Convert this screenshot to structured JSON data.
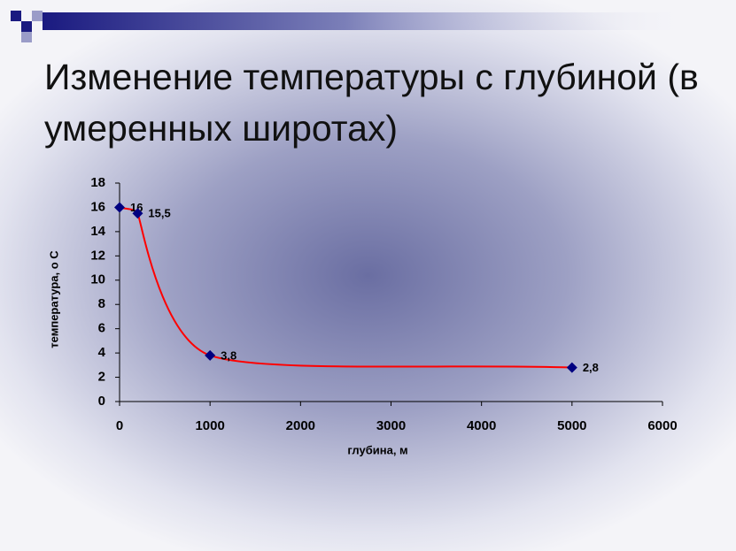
{
  "chart_data": {
    "type": "line",
    "title": "Изменение температуры с глубиной (в умеренных широтах)",
    "x_label": "глубина, м",
    "y_label": "температура, о С",
    "x": [
      0,
      200,
      1000,
      5000
    ],
    "series": [
      {
        "color": "#000080",
        "line_color": "#ff0000",
        "values": [
          16,
          15.5,
          3.8,
          2.8
        ],
        "value_labels": [
          "16",
          "15,5",
          "3,8",
          "2,8"
        ]
      }
    ],
    "xlim": [
      0,
      6000
    ],
    "xticks": [
      0,
      1000,
      2000,
      3000,
      4000,
      5000,
      6000
    ],
    "ylim": [
      0,
      18
    ],
    "yticks": [
      0,
      2,
      4,
      6,
      8,
      10,
      12,
      14,
      16,
      18
    ],
    "grid": false
  }
}
